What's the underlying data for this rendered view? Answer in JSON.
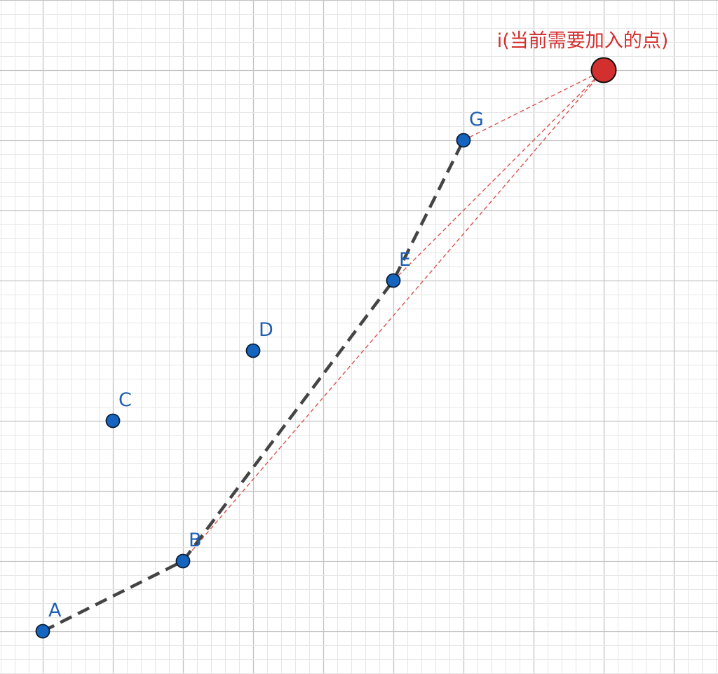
{
  "diagram": {
    "grid": {
      "major_every": 5,
      "minor_color": "#e6e6e6",
      "major_color": "#c4c4c4"
    },
    "colors": {
      "hull_line": "#444444",
      "candidate_line": "#d9534f",
      "point_fill": "#1565c0",
      "new_point_fill": "#d32f2f",
      "label_blue": "#1f5fb3",
      "label_red": "#d32f2f"
    },
    "points": [
      {
        "id": "A",
        "label": "A",
        "x": 0,
        "y": 0
      },
      {
        "id": "B",
        "label": "B",
        "x": 2,
        "y": 1
      },
      {
        "id": "C",
        "label": "C",
        "x": 1,
        "y": 3
      },
      {
        "id": "D",
        "label": "D",
        "x": 3,
        "y": 4
      },
      {
        "id": "E",
        "label": "E",
        "x": 5,
        "y": 5
      },
      {
        "id": "G",
        "label": "G",
        "x": 6,
        "y": 7
      }
    ],
    "new_point": {
      "id": "i",
      "label": "i(当前需要加入的点)",
      "x": 8,
      "y": 8
    },
    "hull_path": [
      "A",
      "B",
      "E",
      "G"
    ],
    "candidate_links": [
      [
        "G",
        "i"
      ],
      [
        "E",
        "i"
      ],
      [
        "B",
        "i"
      ]
    ]
  }
}
